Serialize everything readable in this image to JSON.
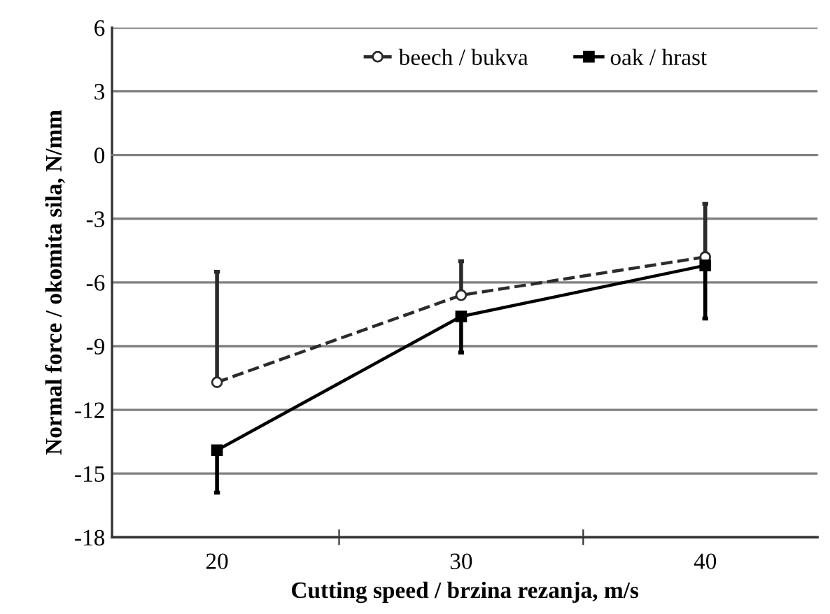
{
  "chart_data": {
    "type": "line",
    "xlabel": "Cutting speed / brzina rezanja, m/s",
    "ylabel": "Normal force / okomita sila, N/mm",
    "x": [
      20,
      30,
      40
    ],
    "xlim": [
      15.7,
      44.6
    ],
    "xticks": [
      20,
      30,
      40
    ],
    "series": [
      {
        "name": "beech / bukva",
        "color": "#2b2b2b",
        "line_style": "dashed",
        "marker": "circle",
        "values": [
          -10.7,
          -6.6,
          -4.8
        ],
        "errors": [
          [
            -10.7,
            -5.5
          ],
          [
            -6.6,
            -5.0
          ],
          [
            -4.8,
            -2.3
          ]
        ]
      },
      {
        "name": "oak / hrast",
        "color": "#000000",
        "line_style": "solid",
        "marker": "square",
        "values": [
          -13.9,
          -7.6,
          -5.2
        ],
        "errors": [
          [
            -15.9,
            -13.9
          ],
          [
            -9.3,
            -7.6
          ],
          [
            -7.7,
            -5.2
          ]
        ]
      }
    ],
    "ylim": [
      -18,
      6
    ],
    "yticks": [
      -18,
      -15,
      -12,
      -9,
      -6,
      -3,
      0,
      3,
      6
    ],
    "grid": "y",
    "legend": "top"
  }
}
